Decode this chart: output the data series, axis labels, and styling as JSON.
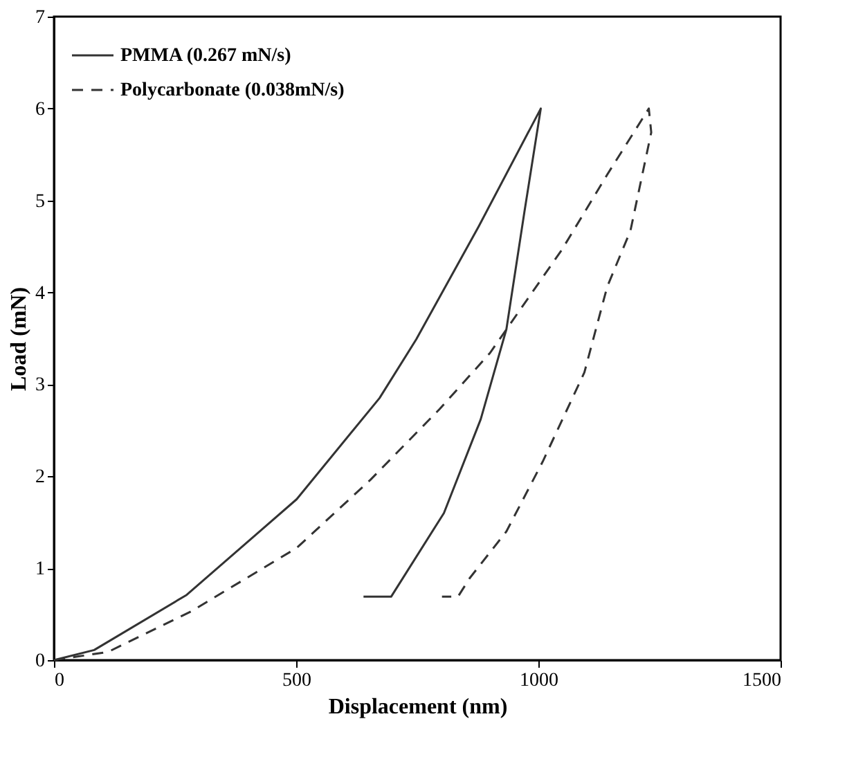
{
  "chart_data": {
    "type": "line",
    "xlabel": "Displacement (nm)",
    "ylabel": "Load (mN)",
    "series": [
      {
        "name": "PMMA (0.267 mN/s)",
        "color": "#333333",
        "line_style": "solid",
        "x": [
          0,
          83,
          274,
          501,
          672,
          748,
          877,
          1005,
          971,
          934,
          881,
          805,
          696,
          639
        ],
        "values": [
          0,
          0.11,
          0.71,
          1.75,
          2.85,
          3.49,
          4.72,
          6.0,
          4.87,
          3.6,
          2.62,
          1.6,
          0.69,
          0.69
        ]
      },
      {
        "name": "Polycarbonate (0.038mN/s)",
        "color": "#333333",
        "line_style": "dashed",
        "x": [
          0,
          112,
          283,
          501,
          653,
          796,
          900,
          1048,
          1142,
          1228,
          1233,
          1190,
          1142,
          1095,
          1009,
          934,
          858,
          834,
          801
        ],
        "values": [
          0,
          0.09,
          0.53,
          1.22,
          1.96,
          2.73,
          3.34,
          4.46,
          5.28,
          6.0,
          5.74,
          4.67,
          4.06,
          3.13,
          2.16,
          1.4,
          0.89,
          0.69,
          0.69
        ]
      }
    ],
    "xlim": [
      0,
      1500
    ],
    "xticks": [
      0,
      500,
      1000,
      1500
    ],
    "ylim": [
      0,
      7
    ],
    "yticks": [
      0,
      1,
      2,
      3,
      4,
      5,
      6,
      7
    ],
    "grid": false,
    "legend": "top left"
  }
}
